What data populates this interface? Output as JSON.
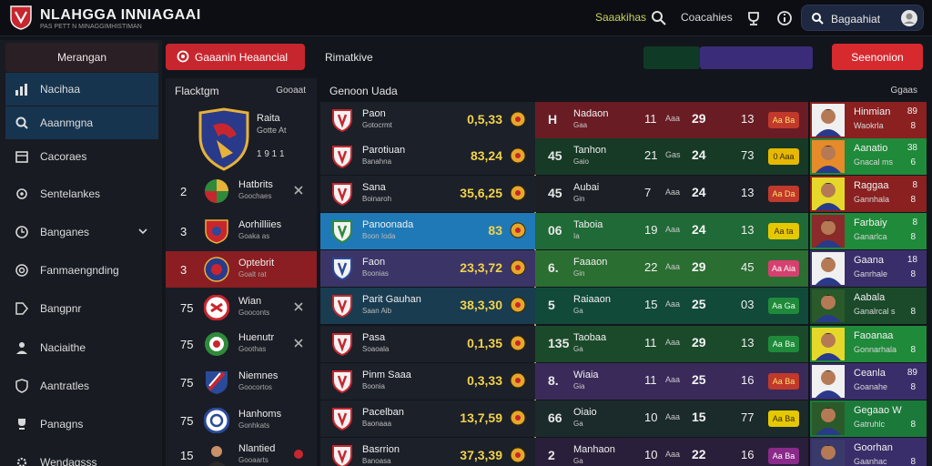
{
  "app": {
    "title": "NLAHGGA INNIAGAAI",
    "subtitle": "PAS PETT N MINAGGIMHISTIMAN"
  },
  "topbar": {
    "link1": "Saaakihas",
    "link2": "Coacahies",
    "search_label": "Bagaahiat"
  },
  "sidebar": {
    "header": "Merangan",
    "items": [
      {
        "label": "Nacihaa",
        "icon": "chart-icon",
        "active": true
      },
      {
        "label": "Aaanmgna",
        "icon": "search-icon",
        "active": true
      },
      {
        "label": "Cacoraes",
        "icon": "calendar-icon",
        "active": false
      },
      {
        "label": "Sentelankes",
        "icon": "settings-icon",
        "active": false
      },
      {
        "label": "Banganes",
        "icon": "clock-icon",
        "active": false,
        "expandable": true
      },
      {
        "label": "Fanmaengnding",
        "icon": "target-icon",
        "active": false
      },
      {
        "label": "Bangpnr",
        "icon": "tag-icon",
        "active": false
      },
      {
        "label": "Naciaithe",
        "icon": "user-icon",
        "active": false
      },
      {
        "label": "Aantratles",
        "icon": "shield-icon",
        "active": false
      },
      {
        "label": "Panagns",
        "icon": "trophy-icon",
        "active": false
      },
      {
        "label": "Wendagsss",
        "icon": "gear-icon",
        "active": false
      }
    ]
  },
  "actions": {
    "primary": "Gaaanin Heaancial",
    "tab": "Rimatkive",
    "secondary": "Seenonion"
  },
  "left_panel": {
    "header": "Flacktgm",
    "header_right": "Gooaat",
    "featured": {
      "name": "Raita",
      "sub": "Gotte At",
      "score": "1 9 1 1"
    },
    "rows": [
      {
        "rank": "2",
        "name": "Hatbrits",
        "sub": "Goochaes",
        "selected": false
      },
      {
        "rank": "3",
        "name": "Aorhilliies",
        "sub": "Goaka as",
        "selected": false
      },
      {
        "rank": "3",
        "name": "Optebrit",
        "sub": "Goalt rat",
        "selected": true
      },
      {
        "rank": "75",
        "name": "Wian",
        "sub": "Gooconts",
        "selected": false
      },
      {
        "rank": "75",
        "name": "Huenutr",
        "sub": "Goothas",
        "selected": false
      },
      {
        "rank": "75",
        "name": "Niemnes",
        "sub": "Goocortos",
        "selected": false
      },
      {
        "rank": "75",
        "name": "Hanhoms",
        "sub": "Gonhkats",
        "selected": false
      },
      {
        "rank": "15",
        "name": "Nlantied",
        "sub": "Gooaarts",
        "selected": false
      }
    ]
  },
  "main": {
    "header": "Genoon Uada",
    "header_right": "Ggaas",
    "rows": [
      {
        "team": "Paon",
        "team_sub": "Gotocrmt",
        "odds": "0,5,33",
        "lead": "H",
        "player": "Nadaon",
        "player_sub": "Gaa",
        "s1": "11",
        "s1x": "Aaa",
        "s2": "29",
        "s3": "13",
        "badge": "Aa Ba",
        "avatar_name": "Hinmian",
        "avatar_num": "89",
        "avatar_sub": "Waokrla",
        "avatar_num2": "8"
      },
      {
        "team": "Parotiuan",
        "team_sub": "Banahna",
        "odds": "83,24",
        "lead": "45",
        "player": "Tanhon",
        "player_sub": "Gaio",
        "s1": "21",
        "s1x": "Gas",
        "s2": "24",
        "s3": "73",
        "badge": "0 Aaa",
        "avatar_name": "Aanatio",
        "avatar_num": "38",
        "avatar_sub": "Gnacal ms",
        "avatar_num2": "6"
      },
      {
        "team": "Sana",
        "team_sub": "Boinaroh",
        "odds": "35,6,25",
        "lead": "45",
        "player": "Aubai",
        "player_sub": "Gin",
        "s1": "7",
        "s1x": "Aaa",
        "s2": "24",
        "s3": "13",
        "badge": "Aa Da",
        "avatar_name": "Raggaa",
        "avatar_num": "8",
        "avatar_sub": "Gannhala",
        "avatar_num2": "8"
      },
      {
        "team": "Panoonada",
        "team_sub": "Boon Ioda",
        "odds": "83",
        "lead": "06",
        "player": "Taboia",
        "player_sub": "Ia",
        "s1": "19",
        "s1x": "Aaa",
        "s2": "24",
        "s3": "13",
        "badge": "Aa ta",
        "avatar_name": "Farbaiy",
        "avatar_num": "8",
        "avatar_sub": "Ganarlca",
        "avatar_num2": "8"
      },
      {
        "team": "Faon",
        "team_sub": "Boonias",
        "odds": "23,3,72",
        "lead": "6.",
        "player": "Faaaon",
        "player_sub": "Gin",
        "s1": "22",
        "s1x": "Aaa",
        "s2": "29",
        "s3": "45",
        "badge": "Aa Aia",
        "avatar_name": "Gaana",
        "avatar_num": "18",
        "avatar_sub": "Ganrhale",
        "avatar_num2": "8"
      },
      {
        "team": "Parit Gauhan",
        "team_sub": "Saan Aib",
        "odds": "38,3,30",
        "lead": "5",
        "player": "Raiaaon",
        "player_sub": "Ga",
        "s1": "15",
        "s1x": "Aaa",
        "s2": "25",
        "s3": "03",
        "badge": "Aa Ga",
        "avatar_name": "Aabala",
        "avatar_num": "",
        "avatar_sub": "Ganalrcal s",
        "avatar_num2": "8"
      },
      {
        "team": "Pasa",
        "team_sub": "Soaoala",
        "odds": "0,1,35",
        "lead": "135",
        "player": "Taobaa",
        "player_sub": "Ga",
        "s1": "11",
        "s1x": "Aaa",
        "s2": "29",
        "s3": "13",
        "badge": "Aa Ba",
        "avatar_name": "Faoanaa",
        "avatar_num": "",
        "avatar_sub": "Gonnarhala",
        "avatar_num2": "8"
      },
      {
        "team": "Pinm Saaa",
        "team_sub": "Boonia",
        "odds": "0,3,33",
        "lead": "8.",
        "player": "Wiaia",
        "player_sub": "Gia",
        "s1": "11",
        "s1x": "Aaa",
        "s2": "25",
        "s3": "16",
        "badge": "Aa Ba",
        "avatar_name": "Ceanla",
        "avatar_num": "89",
        "avatar_sub": "Goanahe",
        "avatar_num2": "8"
      },
      {
        "team": "Pacelban",
        "team_sub": "Baonaaa",
        "odds": "13,7,59",
        "lead": "66",
        "player": "Oiaio",
        "player_sub": "Ga",
        "s1": "10",
        "s1x": "Aaa",
        "s2": "15",
        "s3": "77",
        "badge": "Aa Ba",
        "avatar_name": "Gegaao W",
        "avatar_num": "",
        "avatar_sub": "Gatruhlc",
        "avatar_num2": "8"
      },
      {
        "team": "Basrrion",
        "team_sub": "Banoasa",
        "odds": "37,3,39",
        "lead": "2",
        "player": "Manhaon",
        "player_sub": "Ga",
        "s1": "10",
        "s1x": "Aaa",
        "s2": "22",
        "s3": "16",
        "badge": "Aa Ba",
        "avatar_name": "Goorhan",
        "avatar_num": "",
        "avatar_sub": "Gaanhac",
        "avatar_num2": "8"
      }
    ]
  },
  "colors": {
    "accent_red": "#c8262e",
    "highlight_blue": "#1f79b6",
    "gold_line": "#c9a23a"
  }
}
